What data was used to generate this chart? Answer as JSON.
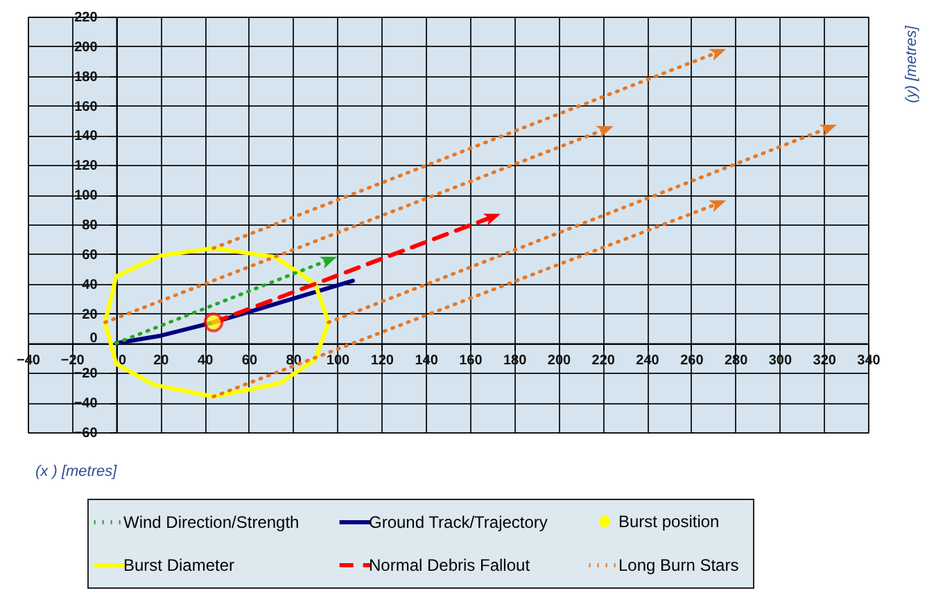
{
  "chart_data": {
    "type": "line",
    "xlabel": "(x ) [metres]",
    "ylabel": "(y)  [metres]",
    "xlim": [
      -40,
      340
    ],
    "ylim": [
      -60,
      220
    ],
    "xticks": [
      -40,
      -20,
      0,
      20,
      40,
      60,
      80,
      100,
      120,
      140,
      160,
      180,
      200,
      220,
      240,
      260,
      280,
      300,
      320,
      340
    ],
    "yticks": [
      -60,
      -40,
      -20,
      0,
      20,
      40,
      60,
      80,
      100,
      120,
      140,
      160,
      180,
      200,
      220
    ],
    "grid": true,
    "legend": "bottom",
    "series": [
      {
        "name": "Wind Direction/Strength",
        "line_style": "dotted",
        "color": "#22aa22",
        "x": [
          0,
          96
        ],
        "values": [
          0,
          56
        ]
      },
      {
        "name": "Ground Track/Trajectory",
        "line_style": "solid",
        "color": "#00007f",
        "x": [
          0,
          20,
          44,
          60,
          80,
          107
        ],
        "values": [
          0,
          5,
          14,
          21,
          30,
          42
        ]
      },
      {
        "name": "Burst position",
        "type": "scatter",
        "marker": "circle",
        "color": "#ffff00",
        "x": [
          44
        ],
        "values": [
          14
        ]
      },
      {
        "name": "Burst Diameter",
        "line_style": "solid",
        "color": "#ffff00",
        "x": [
          -5,
          0,
          20,
          44,
          72,
          90,
          96
        ],
        "values": [
          14,
          45,
          59,
          64,
          58,
          40,
          14
        ]
      },
      {
        "line_style": "solid",
        "color": "#ffff00",
        "x": [
          -5,
          0,
          17,
          44,
          74,
          90,
          96
        ],
        "values": [
          14,
          -14,
          -28,
          -36,
          -27,
          -11,
          14
        ]
      },
      {
        "name": "Normal Debris Fallout",
        "line_style": "dashed",
        "color": "#ff0000",
        "x": [
          44,
          170
        ],
        "values": [
          14,
          85
        ]
      },
      {
        "name": "Long Burn Stars",
        "line_style": "dotted",
        "color": "#e87722",
        "x": [
          44,
          272
        ],
        "values": [
          64,
          196
        ]
      },
      {
        "line_style": "dotted",
        "color": "#e87722",
        "x": [
          -5,
          221
        ],
        "values": [
          14,
          144
        ]
      },
      {
        "line_style": "dotted",
        "color": "#e87722",
        "x": [
          96,
          322
        ],
        "values": [
          14,
          145
        ]
      },
      {
        "line_style": "dotted",
        "color": "#e87722",
        "x": [
          44,
          272
        ],
        "values": [
          -36,
          94
        ]
      }
    ]
  }
}
